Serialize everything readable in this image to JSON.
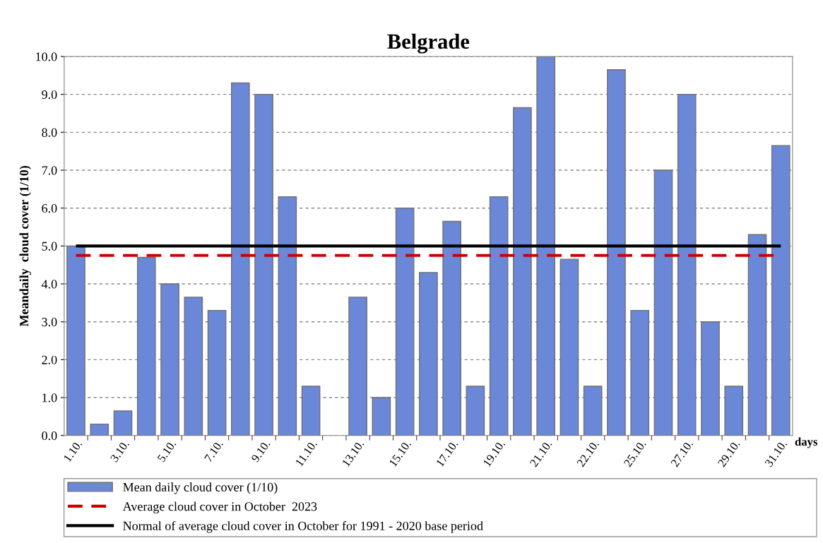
{
  "chart_data": {
    "type": "bar",
    "title": "Belgrade",
    "xlabel": "days",
    "ylabel": "Meandaily  cloud cover (1/10)",
    "categories": [
      "1.10.",
      null,
      "3.10.",
      null,
      "5.10.",
      null,
      "7.10.",
      null,
      "9.10.",
      null,
      "11.10.",
      null,
      "13.10.",
      null,
      "15.10.",
      null,
      "17.10.",
      null,
      "19.10.",
      null,
      "21.10.",
      null,
      "22.10.",
      null,
      "25.10.",
      null,
      "27.10.",
      null,
      "29.10.",
      null,
      "31.10."
    ],
    "series": [
      {
        "name": "Mean daily cloud cover (1/10)",
        "color": "#6a87d8",
        "values": [
          5.0,
          0.3,
          0.65,
          4.7,
          4.0,
          3.65,
          3.3,
          9.3,
          9.0,
          6.3,
          1.3,
          0.0,
          3.65,
          1.0,
          6.0,
          4.3,
          5.65,
          1.3,
          6.3,
          8.65,
          10.0,
          4.65,
          1.3,
          9.65,
          3.3,
          7.0,
          9.0,
          3.0,
          1.3,
          5.3,
          7.65
        ]
      }
    ],
    "ref_lines": [
      {
        "axis": "y",
        "value": 4.75,
        "label": "Average cloud cover in October  2023",
        "color": "#cc0000",
        "line_style": "dashed"
      },
      {
        "axis": "y",
        "value": 5.0,
        "label": "Normal of average cloud cover in October for 1991 - 2020 base period",
        "color": "#000000",
        "line_style": "solid"
      }
    ],
    "ylim": [
      0,
      10
    ],
    "yticks": [
      {
        "value": 0,
        "label": "0.0"
      },
      {
        "value": 1,
        "label": "1.0"
      },
      {
        "value": 2,
        "label": "2.0"
      },
      {
        "value": 3,
        "label": "3.0"
      },
      {
        "value": 4,
        "label": "4.0"
      },
      {
        "value": 5,
        "label": "5.0"
      },
      {
        "value": 6,
        "label": "6.0"
      },
      {
        "value": 7,
        "label": "7.0"
      },
      {
        "value": 8,
        "label": "8.0"
      },
      {
        "value": 9,
        "label": "9.0"
      },
      {
        "value": 10,
        "label": "10.0"
      }
    ],
    "grid": "y",
    "legend": "bottom"
  }
}
